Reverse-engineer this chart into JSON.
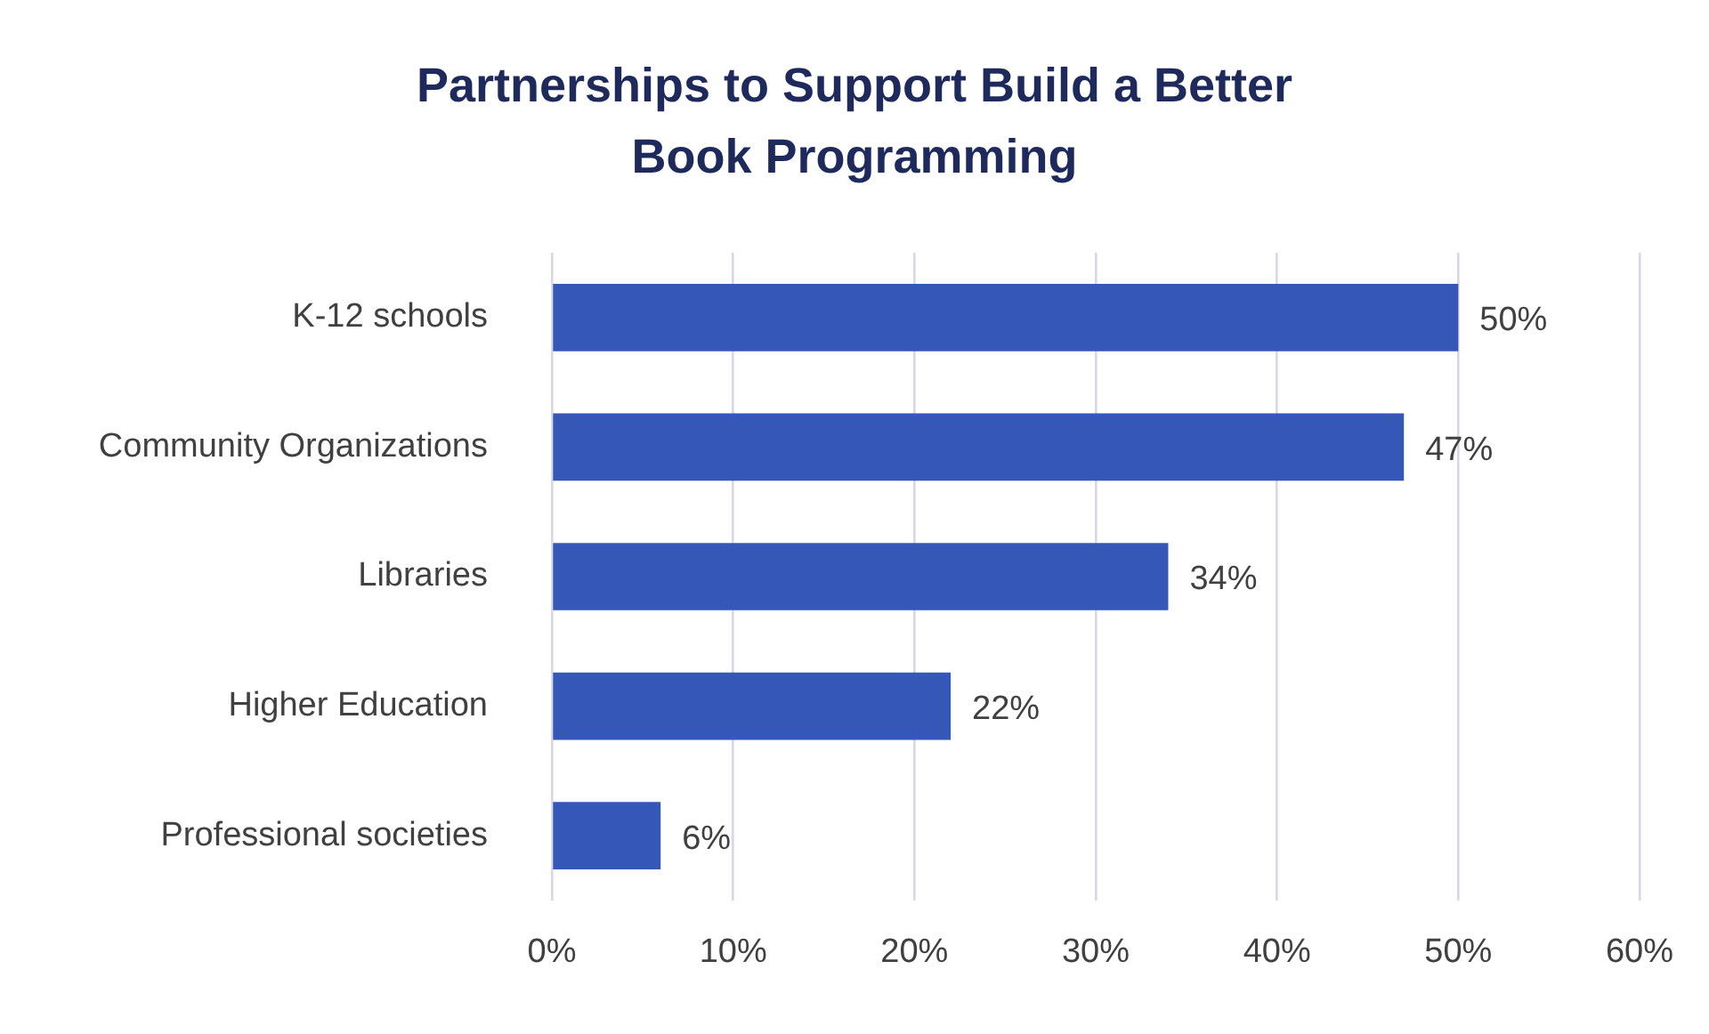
{
  "chart_data": {
    "type": "bar",
    "orientation": "horizontal",
    "title": "Partnerships to Support Build a Better Book Programming",
    "categories": [
      "K-12 schools",
      "Community Organizations",
      "Libraries",
      "Higher Education",
      "Professional societies"
    ],
    "values": [
      50,
      47,
      34,
      22,
      6
    ],
    "color": "#3457b8",
    "value_labels": [
      "50%",
      "47%",
      "34%",
      "22%",
      "6%"
    ],
    "xlim": [
      0,
      60
    ],
    "xticks": [
      {
        "value": 0,
        "label": "0%"
      },
      {
        "value": 10,
        "label": "10%"
      },
      {
        "value": 20,
        "label": "20%"
      },
      {
        "value": 30,
        "label": "30%"
      },
      {
        "value": 40,
        "label": "40%"
      },
      {
        "value": 50,
        "label": "50%"
      },
      {
        "value": 60,
        "label": "60%"
      }
    ],
    "grid": "x",
    "legend": false
  }
}
